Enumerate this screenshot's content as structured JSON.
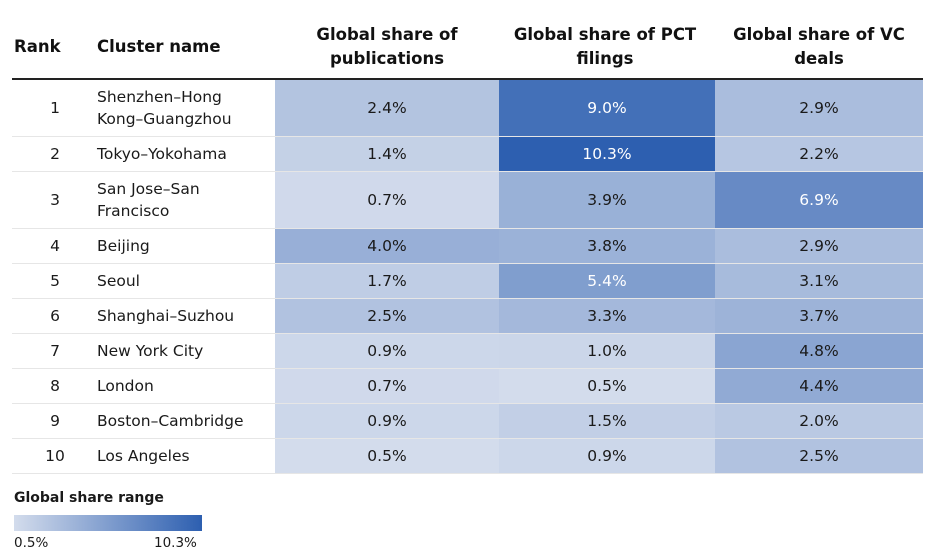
{
  "chart_data": {
    "type": "table",
    "title": "",
    "columns": {
      "rank": "Rank",
      "name": "Cluster name",
      "pubs": "Global share of publications",
      "pct": "Global share of PCT filings",
      "vc": "Global share of VC deals"
    },
    "rows": [
      {
        "rank": "1",
        "name": "Shenzhen–Hong Kong–Guangzhou",
        "pubs": "2.4%",
        "pct": "9.0%",
        "vc": "2.9%",
        "v": [
          2.4,
          9.0,
          2.9
        ]
      },
      {
        "rank": "2",
        "name": "Tokyo–Yokohama",
        "pubs": "1.4%",
        "pct": "10.3%",
        "vc": "2.2%",
        "v": [
          1.4,
          10.3,
          2.2
        ]
      },
      {
        "rank": "3",
        "name": "San Jose–San Francisco",
        "pubs": "0.7%",
        "pct": "3.9%",
        "vc": "6.9%",
        "v": [
          0.7,
          3.9,
          6.9
        ]
      },
      {
        "rank": "4",
        "name": "Beijing",
        "pubs": "4.0%",
        "pct": "3.8%",
        "vc": "2.9%",
        "v": [
          4.0,
          3.8,
          2.9
        ]
      },
      {
        "rank": "5",
        "name": "Seoul",
        "pubs": "1.7%",
        "pct": "5.4%",
        "vc": "3.1%",
        "v": [
          1.7,
          5.4,
          3.1
        ]
      },
      {
        "rank": "6",
        "name": "Shanghai–Suzhou",
        "pubs": "2.5%",
        "pct": "3.3%",
        "vc": "3.7%",
        "v": [
          2.5,
          3.3,
          3.7
        ]
      },
      {
        "rank": "7",
        "name": "New York City",
        "pubs": "0.9%",
        "pct": "1.0%",
        "vc": "4.8%",
        "v": [
          0.9,
          1.0,
          4.8
        ]
      },
      {
        "rank": "8",
        "name": "London",
        "pubs": "0.7%",
        "pct": "0.5%",
        "vc": "4.4%",
        "v": [
          0.7,
          0.5,
          4.4
        ]
      },
      {
        "rank": "9",
        "name": "Boston–Cambridge",
        "pubs": "0.9%",
        "pct": "1.5%",
        "vc": "2.0%",
        "v": [
          0.9,
          1.5,
          2.0
        ]
      },
      {
        "rank": "10",
        "name": "Los Angeles",
        "pubs": "0.5%",
        "pct": "0.9%",
        "vc": "2.5%",
        "v": [
          0.5,
          0.9,
          2.5
        ]
      }
    ],
    "legend": {
      "title": "Global share range",
      "min_label": "0.5%",
      "max_label": "10.3%",
      "min": 0.5,
      "max": 10.3
    },
    "colors": {
      "low": "#d3dcec",
      "high": "#2d5fb0",
      "light_text": "#1a1a1a",
      "dark_text": "#ffffff"
    }
  }
}
